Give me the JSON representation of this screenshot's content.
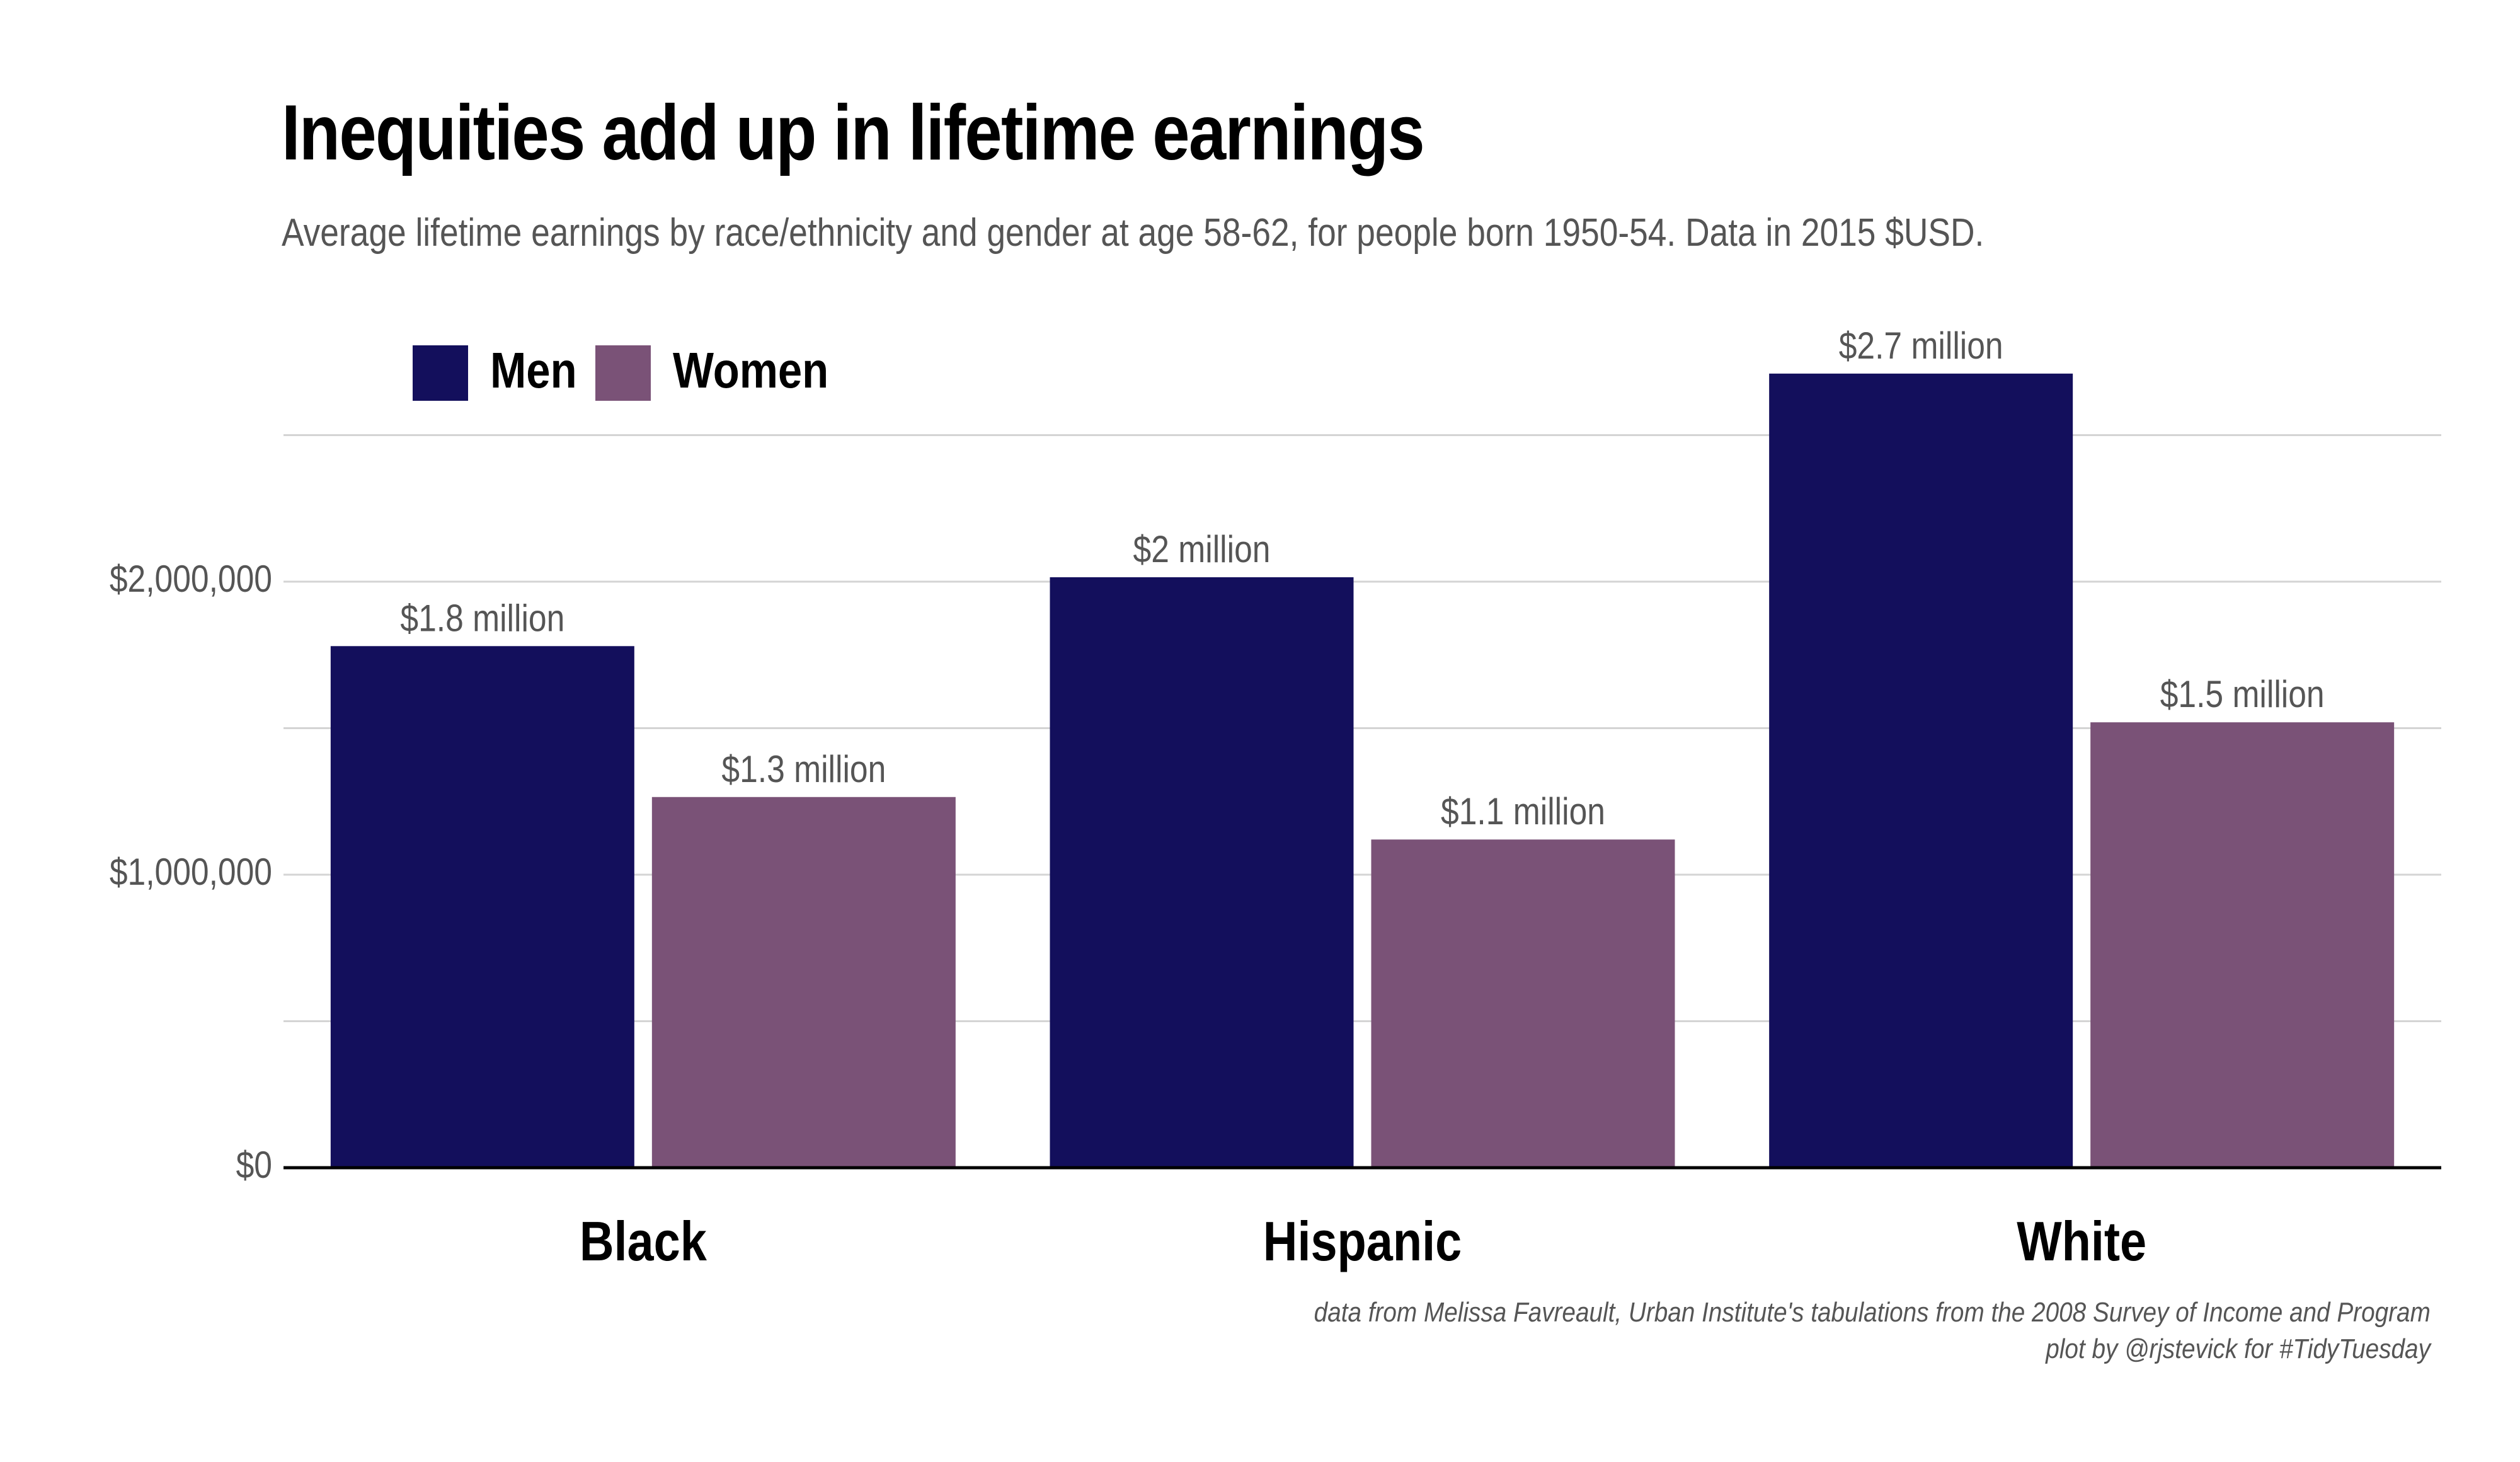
{
  "chart_data": {
    "type": "bar",
    "title": "Inequities add up in lifetime earnings",
    "subtitle": "Average lifetime earnings by race/ethnicity and gender at age 58-62, for people born 1950-54. Data in 2015 $USD.",
    "categories": [
      "Black",
      "Hispanic",
      "White"
    ],
    "series": [
      {
        "name": "Men",
        "color": "#130f5c",
        "values": [
          1780000,
          2015000,
          2710000
        ],
        "labels": [
          "$1.8 million",
          "$2 million",
          "$2.7 million"
        ]
      },
      {
        "name": "Women",
        "color": "#7a5277",
        "values": [
          1265000,
          1120000,
          1520000
        ],
        "labels": [
          "$1.3 million",
          "$1.1 million",
          "$1.5 million"
        ]
      }
    ],
    "xlabel": "",
    "ylabel": "",
    "ylim": [
      0,
      2800000
    ],
    "y_tick_values": [
      0,
      1000000,
      2000000
    ],
    "y_tick_labels": [
      "$0",
      "$1,000,000",
      "$2,000,000"
    ],
    "y_gridlines": [
      0,
      500000,
      1000000,
      1500000,
      2000000,
      2500000
    ],
    "grid": true,
    "legend_position": "top-left",
    "caption_source": "data from Melissa Favreault, Urban Institute's tabulations from the 2008 Survey of Income and Program",
    "caption_credit": "plot by @rjstevick for #TidyTuesday"
  },
  "colors": {
    "grid": "#d4d4d4",
    "axis": "#000000",
    "tick_text": "#555555",
    "label_text": "#555555"
  }
}
